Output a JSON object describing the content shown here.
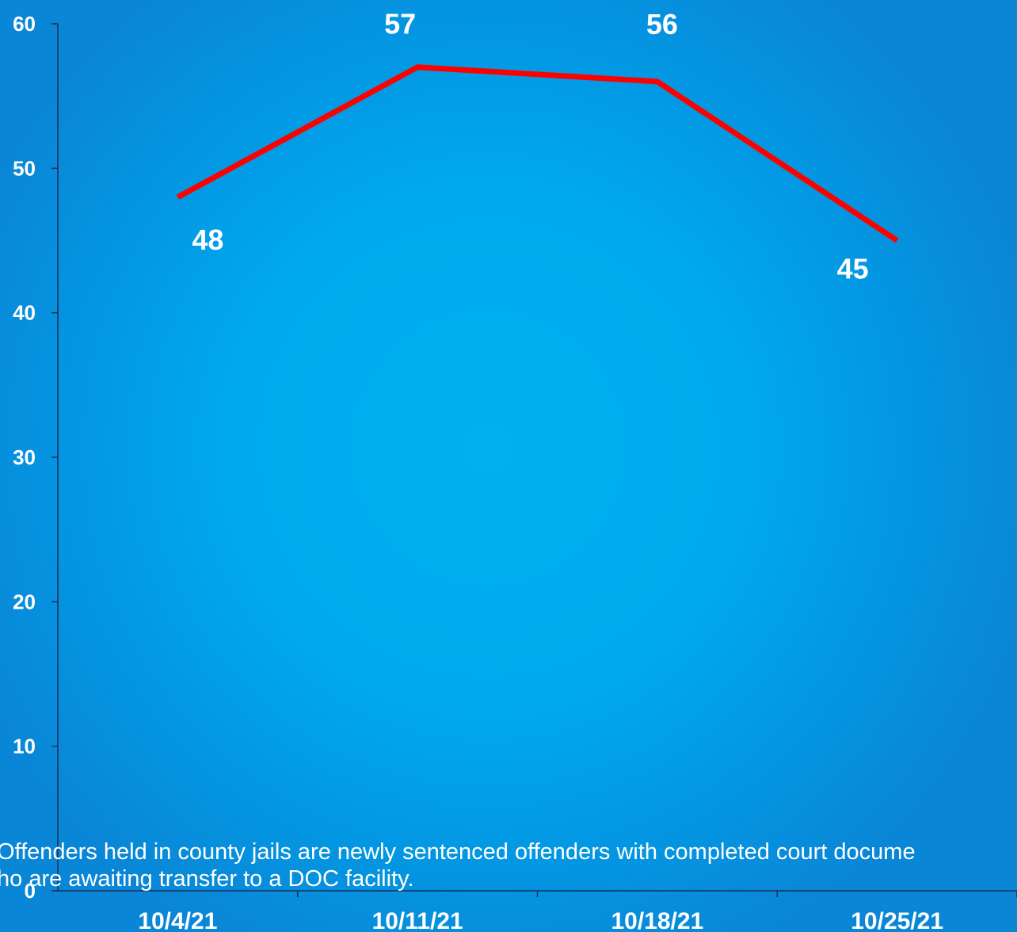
{
  "chart_data": {
    "type": "line",
    "categories": [
      "10/4/21",
      "10/11/21",
      "10/18/21",
      "10/25/21"
    ],
    "series": [
      {
        "values": [
          48,
          57,
          56,
          45
        ],
        "color": "#ff0000"
      }
    ],
    "data_labels": [
      "48",
      "57",
      "56",
      "45"
    ],
    "ylim": [
      0,
      60
    ],
    "yticks": [
      0,
      10,
      20,
      30,
      40,
      50,
      60
    ],
    "ytick_labels": [
      "0",
      "10",
      "20",
      "30",
      "40",
      "50",
      "60"
    ],
    "xlabel": "",
    "ylabel": "",
    "title": "",
    "grid": false,
    "legend": "none",
    "axis_color": "#1f2d5a",
    "label_color": "#ffffff"
  },
  "footnote": {
    "line1": "Offenders held in county jails are newly sentenced offenders with completed court  docume",
    "line2": "ho are awaiting transfer to a DOC facility."
  }
}
